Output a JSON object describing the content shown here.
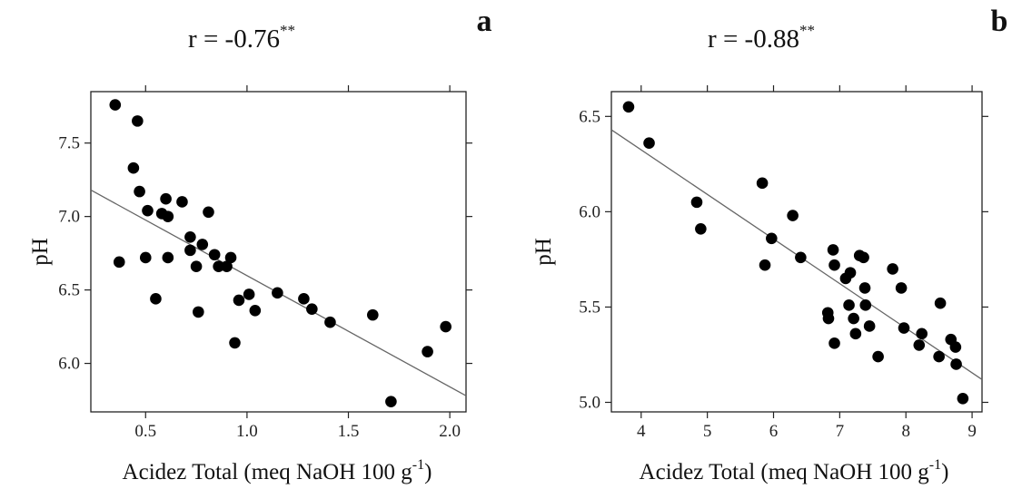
{
  "chart_data": [
    {
      "type": "scatter",
      "panel_label": "a",
      "title": "r = -0.76",
      "title_superscript": "**",
      "xlabel": "Acidez Total (meq NaOH 100 g",
      "xlabel_superscript": "-1",
      "xlabel_close": ")",
      "ylabel": "pH",
      "xlim": [
        0.23,
        2.08
      ],
      "ylim": [
        5.67,
        7.85
      ],
      "xticks": [
        0.5,
        1.0,
        1.5,
        2.0
      ],
      "xtick_labels": [
        "0.5",
        "1.0",
        "1.5",
        "2.0"
      ],
      "yticks": [
        6.0,
        6.5,
        7.0,
        7.5
      ],
      "ytick_labels": [
        "6.0",
        "6.5",
        "7.0",
        "7.5"
      ],
      "grid": false,
      "fit_line": {
        "x": [
          0.23,
          2.08
        ],
        "y": [
          7.18,
          5.78
        ]
      },
      "points": [
        [
          0.35,
          7.76
        ],
        [
          0.46,
          7.65
        ],
        [
          0.44,
          7.33
        ],
        [
          0.47,
          7.17
        ],
        [
          0.37,
          6.69
        ],
        [
          0.51,
          7.04
        ],
        [
          0.5,
          6.72
        ],
        [
          0.58,
          7.02
        ],
        [
          0.6,
          7.12
        ],
        [
          0.61,
          7.0
        ],
        [
          0.55,
          6.44
        ],
        [
          0.61,
          6.72
        ],
        [
          0.68,
          7.1
        ],
        [
          0.72,
          6.86
        ],
        [
          0.72,
          6.77
        ],
        [
          0.75,
          6.66
        ],
        [
          0.78,
          6.81
        ],
        [
          0.81,
          7.03
        ],
        [
          0.84,
          6.74
        ],
        [
          0.86,
          6.66
        ],
        [
          0.9,
          6.66
        ],
        [
          0.92,
          6.72
        ],
        [
          0.76,
          6.35
        ],
        [
          0.96,
          6.43
        ],
        [
          1.01,
          6.47
        ],
        [
          0.94,
          6.14
        ],
        [
          1.04,
          6.36
        ],
        [
          1.15,
          6.48
        ],
        [
          1.28,
          6.44
        ],
        [
          1.32,
          6.37
        ],
        [
          1.41,
          6.28
        ],
        [
          1.62,
          6.33
        ],
        [
          1.71,
          5.74
        ],
        [
          1.89,
          6.08
        ],
        [
          1.98,
          6.25
        ]
      ]
    },
    {
      "type": "scatter",
      "panel_label": "b",
      "title": "r = -0.88",
      "title_superscript": "**",
      "xlabel": "Acidez Total (meq NaOH 100 g",
      "xlabel_superscript": "-1",
      "xlabel_close": ")",
      "ylabel": "pH",
      "xlim": [
        3.55,
        9.15
      ],
      "ylim": [
        4.95,
        6.63
      ],
      "xticks": [
        4,
        5,
        6,
        7,
        8,
        9
      ],
      "xtick_labels": [
        "4",
        "5",
        "6",
        "7",
        "8",
        "9"
      ],
      "yticks": [
        5.0,
        5.5,
        6.0,
        6.5
      ],
      "ytick_labels": [
        "5.0",
        "5.5",
        "6.0",
        "6.5"
      ],
      "grid": false,
      "fit_line": {
        "x": [
          3.55,
          9.15
        ],
        "y": [
          6.43,
          5.12
        ]
      },
      "points": [
        [
          3.81,
          6.55
        ],
        [
          4.12,
          6.36
        ],
        [
          4.84,
          6.05
        ],
        [
          4.9,
          5.91
        ],
        [
          5.83,
          6.15
        ],
        [
          5.87,
          5.72
        ],
        [
          5.97,
          5.86
        ],
        [
          6.29,
          5.98
        ],
        [
          6.41,
          5.76
        ],
        [
          6.82,
          5.47
        ],
        [
          6.83,
          5.44
        ],
        [
          6.9,
          5.8
        ],
        [
          6.92,
          5.72
        ],
        [
          6.92,
          5.31
        ],
        [
          7.09,
          5.65
        ],
        [
          7.14,
          5.51
        ],
        [
          7.16,
          5.68
        ],
        [
          7.21,
          5.44
        ],
        [
          7.24,
          5.36
        ],
        [
          7.3,
          5.77
        ],
        [
          7.36,
          5.76
        ],
        [
          7.38,
          5.6
        ],
        [
          7.39,
          5.51
        ],
        [
          7.45,
          5.4
        ],
        [
          7.58,
          5.24
        ],
        [
          7.8,
          5.7
        ],
        [
          7.93,
          5.6
        ],
        [
          7.97,
          5.39
        ],
        [
          8.2,
          5.3
        ],
        [
          8.24,
          5.36
        ],
        [
          8.5,
          5.24
        ],
        [
          8.52,
          5.52
        ],
        [
          8.68,
          5.33
        ],
        [
          8.75,
          5.29
        ],
        [
          8.76,
          5.2
        ],
        [
          8.86,
          5.02
        ]
      ]
    }
  ]
}
